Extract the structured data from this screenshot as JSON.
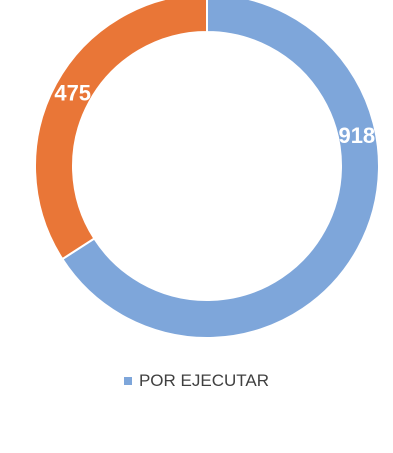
{
  "chart_data": {
    "type": "pie",
    "donut": true,
    "slices": [
      {
        "label": "918",
        "name": "POR EJECUTAR",
        "value": 918,
        "color": "#7EA6DA"
      },
      {
        "label": "475",
        "name": "",
        "value": 475,
        "color": "#E97637"
      }
    ],
    "legend": {
      "placement": "bottom",
      "entries": [
        {
          "name": "POR EJECUTAR",
          "color": "#7EA6DA"
        }
      ]
    }
  }
}
